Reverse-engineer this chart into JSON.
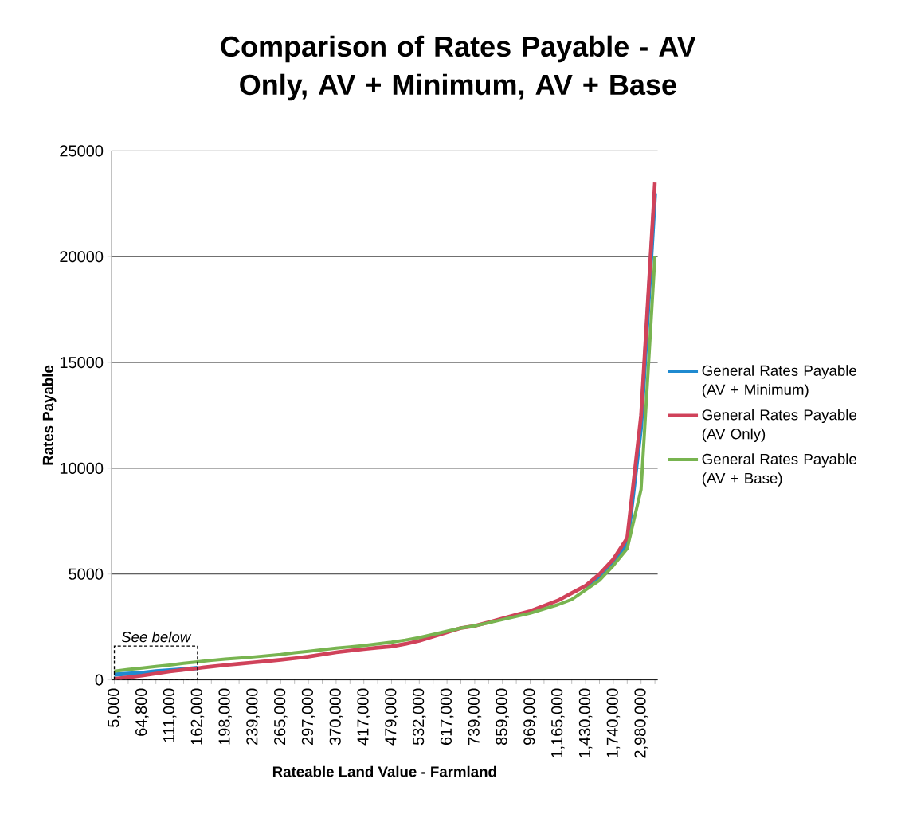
{
  "chart_data": {
    "type": "line",
    "title": "Comparison of Rates Payable - AV Only, AV + Minimum, AV + Base",
    "xlabel": "Rateable Land Value - Farmland",
    "ylabel": "Rates Payable",
    "categories": [
      "5,000",
      null,
      "64,800",
      null,
      "111,000",
      null,
      "162,000",
      null,
      "198,000",
      null,
      "239,000",
      null,
      "265,000",
      null,
      "297,000",
      null,
      "370,000",
      null,
      "417,000",
      null,
      "479,000",
      null,
      "532,000",
      null,
      "617,000",
      null,
      "739,000",
      null,
      "859,000",
      null,
      "969,000",
      null,
      "1,165,000",
      null,
      "1,430,000",
      null,
      "1,740,000",
      null,
      "2,980,000",
      null
    ],
    "series": [
      {
        "name": "General Rates Payable (AV + Minimum)",
        "color": "#1f8ad0",
        "values": [
          250,
          290,
          330,
          400,
          450,
          500,
          560,
          null,
          null,
          null,
          null,
          null,
          null,
          null,
          null,
          null,
          null,
          null,
          null,
          null,
          null,
          null,
          null,
          null,
          null,
          null,
          null,
          null,
          null,
          null,
          null,
          null,
          null,
          null,
          4350,
          4900,
          5500,
          6400,
          12000,
          23000
        ]
      },
      {
        "name": "General Rates Payable (AV Only)",
        "color": "#d0425a",
        "values": [
          50,
          120,
          200,
          300,
          400,
          480,
          550,
          630,
          700,
          760,
          820,
          880,
          950,
          1020,
          1100,
          1200,
          1300,
          1380,
          1450,
          1520,
          1580,
          1700,
          1850,
          2050,
          2250,
          2450,
          2550,
          2720,
          2900,
          3080,
          3250,
          3500,
          3750,
          4100,
          4450,
          5000,
          5700,
          6700,
          12500,
          23500
        ]
      },
      {
        "name": "General Rates Payable (AV + Base)",
        "color": "#78b450",
        "values": [
          410,
          490,
          560,
          630,
          700,
          780,
          850,
          920,
          980,
          1030,
          1080,
          1140,
          1200,
          1280,
          1350,
          1420,
          1500,
          1560,
          1620,
          1700,
          1780,
          1880,
          2000,
          2150,
          2300,
          2450,
          2550,
          2700,
          2850,
          3000,
          3150,
          3350,
          3550,
          3800,
          4250,
          4700,
          5400,
          6200,
          9000,
          20000
        ]
      }
    ],
    "ylim": [
      0,
      25000
    ],
    "yticks": [
      0,
      5000,
      10000,
      15000,
      20000,
      25000
    ],
    "grid": "y",
    "legend": "right",
    "line_style": "solid",
    "annotations": [
      "See below"
    ]
  }
}
